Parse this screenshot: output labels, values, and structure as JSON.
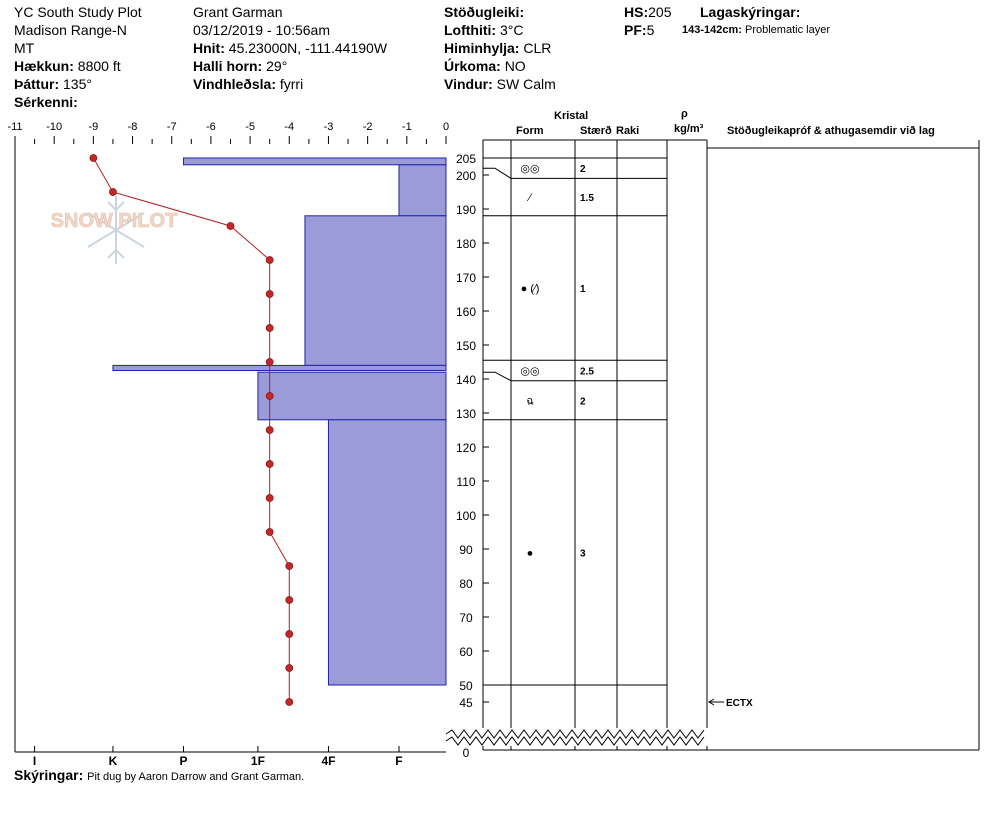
{
  "header": {
    "location": "YC South Study Plot",
    "range": "Madison Range-N",
    "state": "MT",
    "elevation_label": "Hækkun:",
    "elevation_value": "8800 ft",
    "aspect_label": "Þáttur:",
    "aspect_value": "135°",
    "specifics_label": "Sérkenni:",
    "observer": "Grant Garman",
    "datetime": "03/12/2019 - 10:56am",
    "coords_label": "Hnit:",
    "coords_value": "45.23000N, -111.44190W",
    "slope_label": "Halli horn:",
    "slope_value": "29°",
    "wind_loading_label": "Vindhleðsla:",
    "wind_loading_value": "fyrri",
    "stability_label": "Stöðugleiki:",
    "air_temp_label": "Lofthiti:",
    "air_temp_value": "3°C",
    "sky_label": "Himinhylja:",
    "sky_value": "CLR",
    "precip_label": "Úrkoma:",
    "precip_value": "NO",
    "wind_label": "Vindur:",
    "wind_value": "SW Calm",
    "hs_label": "HS:",
    "hs_value": "205",
    "pf_label": "PF:",
    "pf_value": "5",
    "layer_notes_label": "Lagaskýringar:",
    "layer_note_depth": "143-142cm:",
    "layer_note_text": "Problematic layer"
  },
  "logo_text": "SNOW PILOT",
  "columns": {
    "crystal": "Kristal",
    "form": "Form",
    "size": "Stærð",
    "moisture": "Raki",
    "rho": "ρ",
    "density_unit": "kg/m³",
    "stability_tests": "Stöðugleikapróf & athugasemdir við lag"
  },
  "footer": {
    "label": "Skýringar:",
    "text": "Pit dug by Aaron Darrow and Grant Garman."
  },
  "chart_data": {
    "type": "snow-profile",
    "temperature_axis": {
      "range": [
        -11,
        0
      ],
      "ticks": [
        "-11",
        "-10",
        "-9",
        "-8",
        "-7",
        "-6",
        "-5",
        "-4",
        "-3",
        "-2",
        "-1",
        "0"
      ]
    },
    "height_axis": {
      "range_cm": [
        0,
        205
      ],
      "ticks": [
        "205",
        "200",
        "190",
        "180",
        "170",
        "160",
        "150",
        "140",
        "130",
        "120",
        "110",
        "100",
        "90",
        "80",
        "70",
        "60",
        "50",
        "45",
        "0"
      ]
    },
    "hardness_axis": {
      "ticks": [
        "I",
        "K",
        "P",
        "1F",
        "4F",
        "F"
      ]
    },
    "temperature_profile": {
      "depth_cm": [
        205,
        195,
        185,
        175,
        165,
        155,
        145,
        135,
        125,
        115,
        105,
        95,
        85,
        75,
        65,
        55,
        45
      ],
      "temp_c": [
        -9.0,
        -8.5,
        -5.5,
        -4.5,
        -4.5,
        -4.5,
        -4.5,
        -4.5,
        -4.5,
        -4.5,
        -4.5,
        -4.5,
        -4.0,
        -4.0,
        -4.0,
        -4.0,
        -4.0
      ]
    },
    "hardness_layers": [
      {
        "top": 205,
        "bottom": 203,
        "hardness_deg": -6.7
      },
      {
        "top": 203,
        "bottom": 188,
        "hardness_deg": -1.2
      },
      {
        "top": 188,
        "bottom": 144,
        "hardness_deg": -3.6
      },
      {
        "top": 144,
        "bottom": 142.5,
        "hardness_deg": -8.5
      },
      {
        "top": 142,
        "bottom": 128,
        "hardness_deg": -4.8
      },
      {
        "top": 128,
        "bottom": 50,
        "hardness_deg": -3.0
      }
    ],
    "layer_boundaries_cm": [
      205,
      199,
      188,
      145.5,
      139.5,
      128,
      50
    ],
    "layers": [
      {
        "top": 205,
        "bottom": 199,
        "form": "◎◎",
        "size": "2"
      },
      {
        "top": 199,
        "bottom": 188,
        "form": "⁄",
        "size": "1.5"
      },
      {
        "top": 188,
        "bottom": 145.5,
        "form": "● (⁄)",
        "size": "1"
      },
      {
        "top": 145.5,
        "bottom": 139.5,
        "form": "◎◎",
        "size": "2.5"
      },
      {
        "top": 139.5,
        "bottom": 128,
        "form": "ฉ",
        "size": "2"
      },
      {
        "top": 128,
        "bottom": 50,
        "form": "●",
        "size": "3"
      }
    ],
    "tests": [
      {
        "depth_cm": 45,
        "label": "ECTX"
      }
    ]
  }
}
